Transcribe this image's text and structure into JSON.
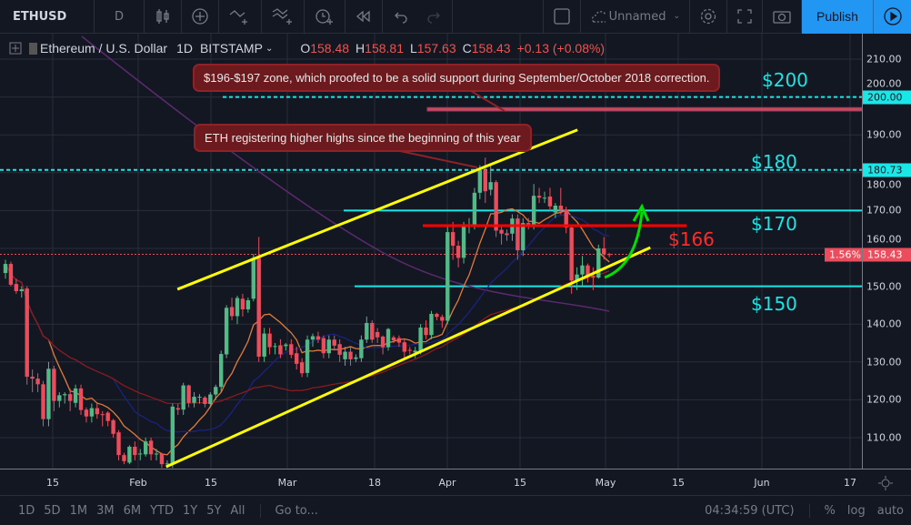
{
  "toolbar": {
    "symbol": "ETHUSD",
    "interval": "D",
    "layout_name": "Unnamed",
    "publish": "Publish"
  },
  "legend": {
    "name": "Ethereum / U.S. Dollar",
    "interval": "1D",
    "exchange": "BITSTAMP",
    "o_label": "O",
    "o": "158.48",
    "h_label": "H",
    "h": "158.81",
    "l_label": "L",
    "l": "157.63",
    "c_label": "C",
    "c": "158.43",
    "change": "+0.13 (+0.08%)"
  },
  "price_axis": {
    "ticks": [
      "210.00",
      "200.00",
      "190.00",
      "180.00",
      "170.00",
      "160.00",
      "150.00",
      "140.00",
      "130.00",
      "120.00",
      "110.00"
    ],
    "tag_200": "200.00",
    "tag_180": "180.73",
    "tag_last": "158.43",
    "tag_pct": "1.56%"
  },
  "time_axis": {
    "ticks": [
      "15",
      "Feb",
      "15",
      "Mar",
      "18",
      "Apr",
      "15",
      "May",
      "15",
      "Jun",
      "17"
    ]
  },
  "bottom": {
    "ranges": [
      "1D",
      "5D",
      "1M",
      "3M",
      "6M",
      "YTD",
      "1Y",
      "5Y",
      "All"
    ],
    "goto": "Go to...",
    "clock": "04:34:59 (UTC)",
    "pct": "%",
    "log": "log",
    "auto": "auto"
  },
  "annotations": {
    "note1": "$196-$197 zone, which proofed to be a solid support during September/October 2018 correction.",
    "note2": "ETH registering higher highs since the beginning of this year",
    "l200": "$200",
    "l180": "$180",
    "l170": "$170",
    "l150": "$150",
    "l166": "$166"
  },
  "colors": {
    "up": "#53b987",
    "down": "#eb4d5c",
    "background": "#131722",
    "channel": "#ffff00",
    "level": "#19e6e6",
    "resistance": "#ff0000",
    "arrow": "#00e000"
  },
  "chart_data": {
    "type": "candlestick",
    "symbol": "ETHUSD",
    "interval": "1D",
    "ylim": [
      102,
      212
    ],
    "grid": true,
    "levels": {
      "dashed": [
        200,
        180.73
      ],
      "solid_cyan": [
        170,
        150
      ],
      "red": 166,
      "zone": [
        196.3,
        197.2
      ],
      "last": 158.43
    },
    "channel_upper": [
      [
        31.9,
        149.2
      ],
      [
        106.1,
        191.3
      ]
    ],
    "channel_lower": [
      [
        29.8,
        102.3
      ],
      [
        119.6,
        160.2
      ]
    ],
    "candles": [
      [
        153.5,
        157,
        152,
        155.9
      ],
      [
        155.9,
        156.5,
        150,
        150.4
      ],
      [
        150.6,
        152,
        148,
        148.7
      ],
      [
        148.7,
        150,
        147,
        149.2
      ],
      [
        149.4,
        150,
        124,
        126.1
      ],
      [
        126.1,
        128,
        122,
        125.6
      ],
      [
        125.6,
        127,
        122,
        124.1
      ],
      [
        124.1,
        125,
        113,
        114.9
      ],
      [
        114.9,
        130,
        113,
        128.2
      ],
      [
        128.2,
        129,
        117,
        119.7
      ],
      [
        119.7,
        122,
        118,
        121.2
      ],
      [
        121.2,
        122,
        119,
        121.5
      ],
      [
        121.5,
        123,
        117,
        119.7
      ],
      [
        119.2,
        124,
        118,
        123
      ],
      [
        123,
        124,
        116,
        117.3
      ],
      [
        117.4,
        118,
        114,
        115.6
      ],
      [
        115.6,
        119,
        114,
        117.8
      ],
      [
        117.8,
        119,
        115,
        116.2
      ],
      [
        116.2,
        117,
        113,
        116
      ],
      [
        116.6,
        117,
        113,
        114.4
      ],
      [
        114.6,
        115,
        110,
        111
      ],
      [
        111.4,
        112,
        104,
        105.4
      ],
      [
        105.4,
        106,
        103,
        103.8
      ],
      [
        103.4,
        108,
        103,
        107.6
      ],
      [
        107.6,
        109,
        104,
        105.4
      ],
      [
        105.6,
        107,
        104,
        105.8
      ],
      [
        105.6,
        110,
        105,
        109
      ],
      [
        109.2,
        110,
        104,
        105.6
      ],
      [
        105.6,
        107,
        104,
        105.8
      ],
      [
        105.8,
        106,
        102,
        103
      ],
      [
        103,
        104,
        102,
        103.2
      ],
      [
        103,
        119,
        102,
        118.2
      ],
      [
        117.8,
        119,
        116,
        117.4
      ],
      [
        117.4,
        124.5,
        116,
        123.8
      ],
      [
        123.8,
        124,
        118,
        119.2
      ],
      [
        119.2,
        122,
        118,
        120.8
      ],
      [
        120.6,
        121.5,
        119,
        120.8
      ],
      [
        120.6,
        121,
        118,
        118.9
      ],
      [
        118.9,
        122,
        118,
        121.4
      ],
      [
        121.4,
        124,
        120,
        123.4
      ],
      [
        123.4,
        133,
        122,
        132.1
      ],
      [
        132,
        145,
        131,
        144.3
      ],
      [
        144.5,
        147,
        141,
        142.1
      ],
      [
        142.1,
        147.5,
        140,
        146.9
      ],
      [
        146.7,
        148,
        142,
        143.9
      ],
      [
        143.9,
        147,
        143,
        146.3
      ],
      [
        146.7,
        158.5,
        146,
        157.5
      ],
      [
        157.5,
        163,
        130,
        131.4
      ],
      [
        131.4,
        139,
        130,
        137.5
      ],
      [
        137.5,
        139,
        132,
        133.9
      ],
      [
        134,
        135,
        132,
        134.2
      ],
      [
        134.4,
        136,
        131,
        132
      ],
      [
        134.2,
        135,
        133,
        134.6
      ],
      [
        134.7,
        136,
        131,
        131.9
      ],
      [
        132.3,
        134,
        128,
        129.5
      ],
      [
        129.9,
        131,
        126,
        127
      ],
      [
        127.1,
        137,
        126,
        135.9
      ],
      [
        135.9,
        137.5,
        134,
        136.8
      ],
      [
        136.8,
        138,
        135,
        135.9
      ],
      [
        136.3,
        137,
        131,
        132.3
      ],
      [
        132.3,
        137,
        131,
        135.9
      ],
      [
        135.9,
        137,
        133,
        134.3
      ],
      [
        134.7,
        136,
        130,
        131.9
      ],
      [
        130.7,
        134,
        129,
        132.7
      ],
      [
        132.7,
        134,
        129,
        130.7
      ],
      [
        130.8,
        132,
        130,
        131.2
      ],
      [
        131,
        137,
        130,
        135.9
      ],
      [
        135.9,
        142,
        135,
        140.3
      ],
      [
        140.3,
        141,
        135,
        135.9
      ],
      [
        137.9,
        139,
        135,
        136.5
      ],
      [
        136.7,
        137,
        132,
        133.9
      ],
      [
        133.9,
        139,
        133,
        138.7
      ],
      [
        136.5,
        137,
        135,
        135.7
      ],
      [
        136.3,
        137,
        134,
        135.1
      ],
      [
        135.2,
        136,
        131,
        132.7
      ],
      [
        133.2,
        134,
        132,
        133
      ],
      [
        132.5,
        134,
        131,
        133
      ],
      [
        132.7,
        140,
        132,
        139.1
      ],
      [
        139.1,
        141,
        136,
        137.1
      ],
      [
        137.1,
        143.5,
        136,
        142.7
      ],
      [
        142.7,
        143,
        141,
        141.9
      ],
      [
        141.9,
        142.5,
        139,
        140.9
      ],
      [
        140.9,
        166,
        140,
        164.3
      ],
      [
        164.3,
        167,
        157,
        160.7
      ],
      [
        160.7,
        162,
        155,
        157.5
      ],
      [
        157.5,
        167,
        156,
        165.9
      ],
      [
        165.7,
        168,
        164,
        165.9
      ],
      [
        165.9,
        176,
        165,
        174.7
      ],
      [
        174.7,
        182,
        173,
        180.7
      ],
      [
        180.7,
        184,
        172,
        175.1
      ],
      [
        175.5,
        182,
        174,
        177.5
      ],
      [
        177.5,
        178,
        163,
        164.7
      ],
      [
        164.9,
        166,
        161,
        163.9
      ],
      [
        164,
        165,
        162,
        163.5
      ],
      [
        163.9,
        169,
        162,
        167.9
      ],
      [
        167.9,
        169,
        157,
        159.5
      ],
      [
        159.5,
        168,
        158,
        166.7
      ],
      [
        166.7,
        168,
        165,
        166
      ],
      [
        166,
        177,
        165,
        173.9
      ],
      [
        173.9,
        176,
        172,
        173.4
      ],
      [
        173.4,
        175,
        172,
        173.4
      ],
      [
        173.7,
        176,
        170,
        171.1
      ],
      [
        169.5,
        172,
        168,
        171.3
      ],
      [
        171.3,
        176,
        169,
        170
      ],
      [
        170.2,
        171,
        164,
        165.5
      ],
      [
        165.5,
        166,
        148,
        151.5
      ],
      [
        151.5,
        155,
        149,
        153.1
      ],
      [
        153.1,
        158,
        150,
        155.5
      ],
      [
        155.5,
        156,
        151,
        152.7
      ],
      [
        152.7,
        155,
        149,
        152.3
      ],
      [
        152.3,
        161,
        152,
        160
      ],
      [
        160,
        163,
        157,
        158.48
      ],
      [
        158.48,
        158.81,
        157.63,
        158.43
      ]
    ]
  }
}
